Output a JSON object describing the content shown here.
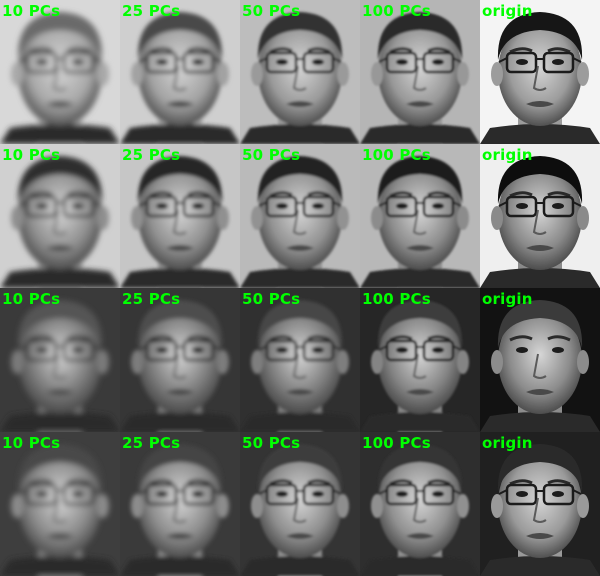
{
  "label_color": "#00ff00",
  "rows": [
    {
      "cells": [
        {
          "label": "10 PCs",
          "kind": "reconstruction",
          "skin": "#a8a8a8",
          "bg": "#d8d8d8",
          "hair": "#6a6a6a",
          "blur": 3,
          "glasses": true
        },
        {
          "label": "25 PCs",
          "kind": "reconstruction",
          "skin": "#a2a2a2",
          "bg": "#cfcfcf",
          "hair": "#4a4a4a",
          "blur": 2,
          "glasses": true
        },
        {
          "label": "50 PCs",
          "kind": "reconstruction",
          "skin": "#9a9a9a",
          "bg": "#bdbdbd",
          "hair": "#333333",
          "blur": 1.4,
          "glasses": true
        },
        {
          "label": "100 PCs",
          "kind": "reconstruction",
          "skin": "#989898",
          "bg": "#b5b5b5",
          "hair": "#2a2a2a",
          "blur": 1,
          "glasses": true
        },
        {
          "label": "origin",
          "kind": "original",
          "skin": "#9c9c9c",
          "bg": "#f4f4f4",
          "hair": "#151515",
          "blur": 0.2,
          "glasses": true
        }
      ]
    },
    {
      "cells": [
        {
          "label": "10 PCs",
          "kind": "reconstruction",
          "skin": "#8e8e8e",
          "bg": "#d0d0d0",
          "hair": "#2f2f2f",
          "blur": 2.6,
          "glasses": true
        },
        {
          "label": "25 PCs",
          "kind": "reconstruction",
          "skin": "#909090",
          "bg": "#c6c6c6",
          "hair": "#262626",
          "blur": 1.8,
          "glasses": true
        },
        {
          "label": "50 PCs",
          "kind": "reconstruction",
          "skin": "#929292",
          "bg": "#bababa",
          "hair": "#222222",
          "blur": 1.3,
          "glasses": true
        },
        {
          "label": "100 PCs",
          "kind": "reconstruction",
          "skin": "#8c8c8c",
          "bg": "#b8b8b8",
          "hair": "#1c1c1c",
          "blur": 1,
          "glasses": true
        },
        {
          "label": "origin",
          "kind": "original",
          "skin": "#8a8a8a",
          "bg": "#efefef",
          "hair": "#111111",
          "blur": 0.2,
          "glasses": true
        }
      ]
    },
    {
      "cells": [
        {
          "label": "10 PCs",
          "kind": "reconstruction",
          "skin": "#7a7a7a",
          "bg": "#3a3a3a",
          "hair": "#555555",
          "blur": 3,
          "glasses": true
        },
        {
          "label": "25 PCs",
          "kind": "reconstruction",
          "skin": "#7c7c7c",
          "bg": "#363636",
          "hair": "#4e4e4e",
          "blur": 2.2,
          "glasses": true
        },
        {
          "label": "50 PCs",
          "kind": "reconstruction",
          "skin": "#7e7e7e",
          "bg": "#303030",
          "hair": "#474747",
          "blur": 1.6,
          "glasses": true
        },
        {
          "label": "100 PCs",
          "kind": "reconstruction",
          "skin": "#848484",
          "bg": "#262626",
          "hair": "#3d3d3d",
          "blur": 1.1,
          "glasses": true
        },
        {
          "label": "origin",
          "kind": "original",
          "skin": "#8c8c8c",
          "bg": "#121212",
          "hair": "#3a3a3a",
          "blur": 0.3,
          "glasses": false
        }
      ]
    },
    {
      "cells": [
        {
          "label": "10 PCs",
          "kind": "reconstruction",
          "skin": "#8a8a8a",
          "bg": "#3e3e3e",
          "hair": "#4a4a4a",
          "blur": 2.8,
          "glasses": true
        },
        {
          "label": "25 PCs",
          "kind": "reconstruction",
          "skin": "#8c8c8c",
          "bg": "#3a3a3a",
          "hair": "#444444",
          "blur": 2,
          "glasses": true
        },
        {
          "label": "50 PCs",
          "kind": "reconstruction",
          "skin": "#8e8e8e",
          "bg": "#343434",
          "hair": "#3c3c3c",
          "blur": 1.4,
          "glasses": true
        },
        {
          "label": "100 PCs",
          "kind": "reconstruction",
          "skin": "#909090",
          "bg": "#2e2e2e",
          "hair": "#343434",
          "blur": 1,
          "glasses": true
        },
        {
          "label": "origin",
          "kind": "original",
          "skin": "#9a9a9a",
          "bg": "#202020",
          "hair": "#2a2a2a",
          "blur": 0.3,
          "glasses": true
        }
      ]
    }
  ]
}
